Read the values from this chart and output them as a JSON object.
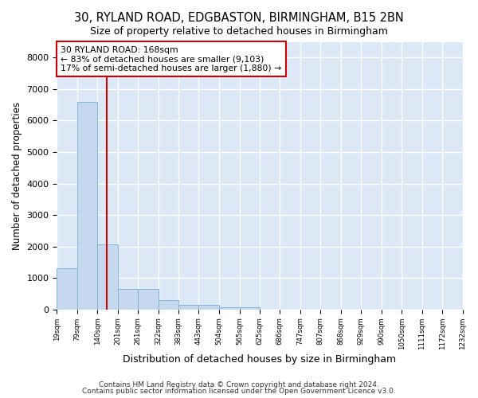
{
  "title1": "30, RYLAND ROAD, EDGBASTON, BIRMINGHAM, B15 2BN",
  "title2": "Size of property relative to detached houses in Birmingham",
  "xlabel": "Distribution of detached houses by size in Birmingham",
  "ylabel": "Number of detached properties",
  "bar_values": [
    1300,
    6600,
    2080,
    650,
    650,
    300,
    140,
    140,
    80,
    80,
    0,
    0,
    0,
    0,
    0,
    0,
    0,
    0,
    0,
    0
  ],
  "bin_edges": [
    19,
    79,
    140,
    201,
    261,
    322,
    383,
    443,
    504,
    565,
    625,
    686,
    747,
    807,
    868,
    929,
    990,
    1050,
    1111,
    1172,
    1232
  ],
  "bar_color": "#c5d8f0",
  "bar_edge_color": "#7bafd4",
  "vline_x": 168,
  "vline_color": "#cc0000",
  "annotation_line1": "30 RYLAND ROAD: 168sqm",
  "annotation_line2": "← 83% of detached houses are smaller (9,103)",
  "annotation_line3": "17% of semi-detached houses are larger (1,880) →",
  "annotation_box_color": "#cc0000",
  "ylim": [
    0,
    8500
  ],
  "yticks": [
    0,
    1000,
    2000,
    3000,
    4000,
    5000,
    6000,
    7000,
    8000
  ],
  "background_color": "#dce8f5",
  "grid_color": "#ffffff",
  "footnote1": "Contains HM Land Registry data © Crown copyright and database right 2024.",
  "footnote2": "Contains public sector information licensed under the Open Government Licence v3.0."
}
